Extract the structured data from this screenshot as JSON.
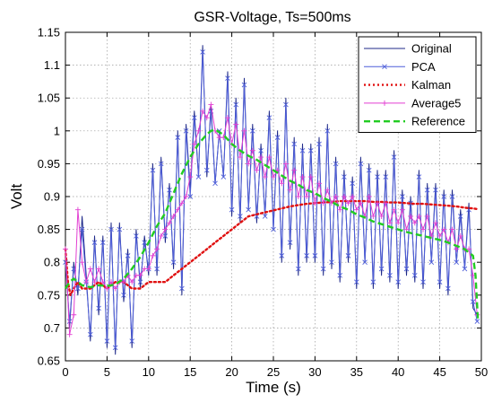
{
  "chart_data": {
    "type": "line",
    "title": "GSR-Voltage, Ts=500ms",
    "xlabel": "Time (s)",
    "ylabel": "Volt",
    "xlim": [
      0,
      50
    ],
    "ylim": [
      0.65,
      1.15
    ],
    "xticks": [
      0,
      5,
      10,
      15,
      20,
      25,
      30,
      35,
      40,
      45,
      50
    ],
    "yticks": [
      0.65,
      0.7,
      0.75,
      0.8,
      0.85,
      0.9,
      0.95,
      1,
      1.05,
      1.1,
      1.15
    ],
    "grid": true,
    "legend_position": "top-right",
    "series": [
      {
        "name": "Original",
        "color": "#1f2a8a",
        "style": "solid",
        "marker": "none",
        "x": [
          0,
          0.5,
          1,
          1.5,
          2,
          2.5,
          3,
          3.5,
          4,
          4.5,
          5,
          5.5,
          6,
          6.5,
          7,
          7.5,
          8,
          8.5,
          9,
          9.5,
          10,
          10.5,
          11,
          11.5,
          12,
          12.5,
          13,
          13.5,
          14,
          14.5,
          15,
          15.5,
          16,
          16.5,
          17,
          17.5,
          18,
          18.5,
          19,
          19.5,
          20,
          20.5,
          21,
          21.5,
          22,
          22.5,
          23,
          23.5,
          24,
          24.5,
          25,
          25.5,
          26,
          26.5,
          27,
          27.5,
          28,
          28.5,
          29,
          29.5,
          30,
          30.5,
          31,
          31.5,
          32,
          32.5,
          33,
          33.5,
          34,
          34.5,
          35,
          35.5,
          36,
          36.5,
          37,
          37.5,
          38,
          38.5,
          39,
          39.5,
          40,
          40.5,
          41,
          41.5,
          42,
          42.5,
          43,
          43.5,
          44,
          44.5,
          45,
          45.5,
          46,
          46.5,
          47,
          47.5,
          48,
          48.5,
          49,
          49.5
        ],
        "y": [
          0.82,
          0.7,
          0.8,
          0.75,
          0.87,
          0.78,
          0.68,
          0.84,
          0.72,
          0.84,
          0.67,
          0.86,
          0.66,
          0.86,
          0.74,
          0.82,
          0.67,
          0.85,
          0.76,
          0.84,
          0.78,
          0.95,
          0.78,
          0.96,
          0.83,
          0.92,
          0.79,
          1.0,
          0.75,
          1.01,
          0.91,
          1.03,
          0.93,
          1.13,
          0.93,
          1.04,
          0.92,
          1.0,
          0.93,
          1.09,
          0.87,
          1.05,
          0.86,
          1.08,
          0.88,
          1.01,
          0.86,
          0.98,
          0.87,
          1.03,
          0.85,
          1.0,
          0.8,
          1.05,
          0.82,
          0.99,
          0.78,
          0.98,
          0.8,
          0.98,
          0.8,
          0.99,
          0.78,
          1.01,
          0.79,
          0.96,
          0.77,
          0.94,
          0.8,
          0.93,
          0.76,
          0.96,
          0.8,
          0.95,
          0.76,
          0.94,
          0.78,
          0.94,
          0.77,
          0.97,
          0.76,
          0.91,
          0.78,
          0.9,
          0.77,
          0.94,
          0.76,
          0.92,
          0.8,
          0.92,
          0.76,
          0.91,
          0.75,
          0.91,
          0.8,
          0.88,
          0.79,
          0.89,
          0.73,
          0.72
        ]
      },
      {
        "name": "PCA",
        "color": "#4f5fd9",
        "style": "solid",
        "marker": "x",
        "x": [
          0,
          0.5,
          1,
          1.5,
          2,
          2.5,
          3,
          3.5,
          4,
          4.5,
          5,
          5.5,
          6,
          6.5,
          7,
          7.5,
          8,
          8.5,
          9,
          9.5,
          10,
          10.5,
          11,
          11.5,
          12,
          12.5,
          13,
          13.5,
          14,
          14.5,
          15,
          15.5,
          16,
          16.5,
          17,
          17.5,
          18,
          18.5,
          19,
          19.5,
          20,
          20.5,
          21,
          21.5,
          22,
          22.5,
          23,
          23.5,
          24,
          24.5,
          25,
          25.5,
          26,
          26.5,
          27,
          27.5,
          28,
          28.5,
          29,
          29.5,
          30,
          30.5,
          31,
          31.5,
          32,
          32.5,
          33,
          33.5,
          34,
          34.5,
          35,
          35.5,
          36,
          36.5,
          37,
          37.5,
          38,
          38.5,
          39,
          39.5,
          40,
          40.5,
          41,
          41.5,
          42,
          42.5,
          43,
          43.5,
          44,
          44.5,
          45,
          45.5,
          46,
          46.5,
          47,
          47.5,
          48,
          48.5,
          49,
          49.5
        ],
        "y": [
          0.8,
          0.71,
          0.79,
          0.76,
          0.85,
          0.77,
          0.69,
          0.83,
          0.73,
          0.83,
          0.68,
          0.85,
          0.67,
          0.85,
          0.75,
          0.81,
          0.68,
          0.84,
          0.77,
          0.83,
          0.79,
          0.94,
          0.79,
          0.95,
          0.84,
          0.91,
          0.8,
          0.99,
          0.76,
          1.0,
          0.9,
          1.02,
          0.93,
          1.12,
          0.94,
          1.03,
          0.92,
          1.0,
          0.93,
          1.08,
          0.88,
          1.04,
          0.87,
          1.07,
          0.88,
          1.0,
          0.87,
          0.97,
          0.87,
          1.02,
          0.85,
          0.99,
          0.81,
          1.04,
          0.83,
          0.98,
          0.79,
          0.97,
          0.81,
          0.97,
          0.81,
          0.98,
          0.79,
          1.0,
          0.8,
          0.95,
          0.78,
          0.93,
          0.81,
          0.92,
          0.77,
          0.95,
          0.8,
          0.94,
          0.77,
          0.93,
          0.79,
          0.93,
          0.78,
          0.96,
          0.77,
          0.9,
          0.79,
          0.89,
          0.78,
          0.93,
          0.77,
          0.91,
          0.8,
          0.91,
          0.77,
          0.9,
          0.76,
          0.9,
          0.8,
          0.87,
          0.79,
          0.88,
          0.74,
          0.71
        ]
      },
      {
        "name": "Kalman",
        "color": "#e01010",
        "style": "dotted",
        "marker": "none",
        "x": [
          0,
          0.3,
          0.6,
          1,
          1.5,
          2,
          3,
          4,
          5,
          6,
          7,
          8,
          9,
          10,
          11,
          12,
          13,
          14,
          15,
          16,
          17,
          18,
          19,
          20,
          21,
          22,
          23,
          24,
          25,
          26,
          27,
          28,
          29,
          30,
          31,
          32,
          33,
          34,
          35,
          36,
          37,
          38,
          39,
          40,
          41,
          42,
          43,
          44,
          45,
          46,
          47,
          48,
          49,
          49.5
        ],
        "y": [
          0.82,
          0.77,
          0.75,
          0.76,
          0.77,
          0.76,
          0.76,
          0.77,
          0.76,
          0.77,
          0.77,
          0.76,
          0.76,
          0.77,
          0.77,
          0.77,
          0.78,
          0.79,
          0.8,
          0.81,
          0.82,
          0.83,
          0.84,
          0.85,
          0.86,
          0.87,
          0.873,
          0.876,
          0.879,
          0.882,
          0.885,
          0.887,
          0.889,
          0.89,
          0.891,
          0.892,
          0.893,
          0.893,
          0.893,
          0.893,
          0.892,
          0.892,
          0.891,
          0.891,
          0.89,
          0.889,
          0.889,
          0.888,
          0.887,
          0.886,
          0.885,
          0.883,
          0.882,
          0.881
        ]
      },
      {
        "name": "Average5",
        "color": "#e23fd2",
        "style": "solid",
        "marker": "+",
        "x": [
          0,
          0.5,
          1,
          1.5,
          2,
          2.5,
          3,
          3.5,
          4,
          4.5,
          5,
          5.5,
          6,
          6.5,
          7,
          7.5,
          8,
          8.5,
          9,
          9.5,
          10,
          10.5,
          11,
          11.5,
          12,
          12.5,
          13,
          13.5,
          14,
          14.5,
          15,
          15.5,
          16,
          16.5,
          17,
          17.5,
          18,
          18.5,
          19,
          19.5,
          20,
          20.5,
          21,
          21.5,
          22,
          22.5,
          23,
          23.5,
          24,
          24.5,
          25,
          25.5,
          26,
          26.5,
          27,
          27.5,
          28,
          28.5,
          29,
          29.5,
          30,
          30.5,
          31,
          31.5,
          32,
          32.5,
          33,
          33.5,
          34,
          34.5,
          35,
          35.5,
          36,
          36.5,
          37,
          37.5,
          38,
          38.5,
          39,
          39.5,
          40,
          40.5,
          41,
          41.5,
          42,
          42.5,
          43,
          43.5,
          44,
          44.5,
          45,
          45.5,
          46,
          46.5,
          47,
          47.5,
          48,
          48.5,
          49,
          49.5
        ],
        "y": [
          0.82,
          0.69,
          0.72,
          0.88,
          0.8,
          0.77,
          0.79,
          0.77,
          0.79,
          0.77,
          0.76,
          0.77,
          0.76,
          0.77,
          0.77,
          0.78,
          0.77,
          0.78,
          0.78,
          0.79,
          0.79,
          0.81,
          0.82,
          0.84,
          0.85,
          0.86,
          0.87,
          0.88,
          0.89,
          0.9,
          0.93,
          0.98,
          1.0,
          1.03,
          1.02,
          1.04,
          1.0,
          0.99,
          0.99,
          1.02,
          0.98,
          1.01,
          0.96,
          1.0,
          0.95,
          0.97,
          0.94,
          0.96,
          0.93,
          0.96,
          0.93,
          0.94,
          0.92,
          0.95,
          0.91,
          0.94,
          0.9,
          0.93,
          0.9,
          0.93,
          0.89,
          0.92,
          0.89,
          0.91,
          0.89,
          0.9,
          0.88,
          0.9,
          0.89,
          0.9,
          0.88,
          0.89,
          0.87,
          0.9,
          0.87,
          0.89,
          0.87,
          0.89,
          0.86,
          0.88,
          0.86,
          0.88,
          0.85,
          0.87,
          0.86,
          0.87,
          0.85,
          0.87,
          0.84,
          0.86,
          0.84,
          0.85,
          0.83,
          0.85,
          0.82,
          0.84,
          0.82,
          0.82,
          0.78,
          0.72
        ]
      },
      {
        "name": "Reference",
        "color": "#22cc22",
        "style": "dashed",
        "marker": "none",
        "x": [
          0,
          0.5,
          1,
          1.5,
          2,
          3,
          4,
          5,
          6,
          7,
          8,
          9,
          10,
          11,
          12,
          13,
          14,
          15,
          16,
          17,
          17.5,
          18,
          18.5,
          19,
          20,
          21,
          22,
          23,
          24,
          25,
          26,
          27,
          28,
          29,
          30,
          31,
          32,
          33,
          34,
          35,
          36,
          37,
          38,
          39,
          40,
          41,
          42,
          43,
          44,
          45,
          46,
          47,
          48,
          48.5,
          49,
          49.3,
          49.6
        ],
        "y": [
          0.76,
          0.77,
          0.775,
          0.77,
          0.765,
          0.762,
          0.765,
          0.764,
          0.766,
          0.775,
          0.79,
          0.808,
          0.83,
          0.855,
          0.875,
          0.905,
          0.935,
          0.96,
          0.98,
          0.995,
          1.0,
          1.002,
          0.998,
          0.994,
          0.98,
          0.97,
          0.962,
          0.956,
          0.948,
          0.94,
          0.932,
          0.924,
          0.918,
          0.91,
          0.905,
          0.898,
          0.892,
          0.885,
          0.88,
          0.873,
          0.868,
          0.862,
          0.858,
          0.854,
          0.85,
          0.846,
          0.843,
          0.84,
          0.837,
          0.834,
          0.83,
          0.825,
          0.82,
          0.815,
          0.81,
          0.78,
          0.71
        ]
      }
    ]
  }
}
